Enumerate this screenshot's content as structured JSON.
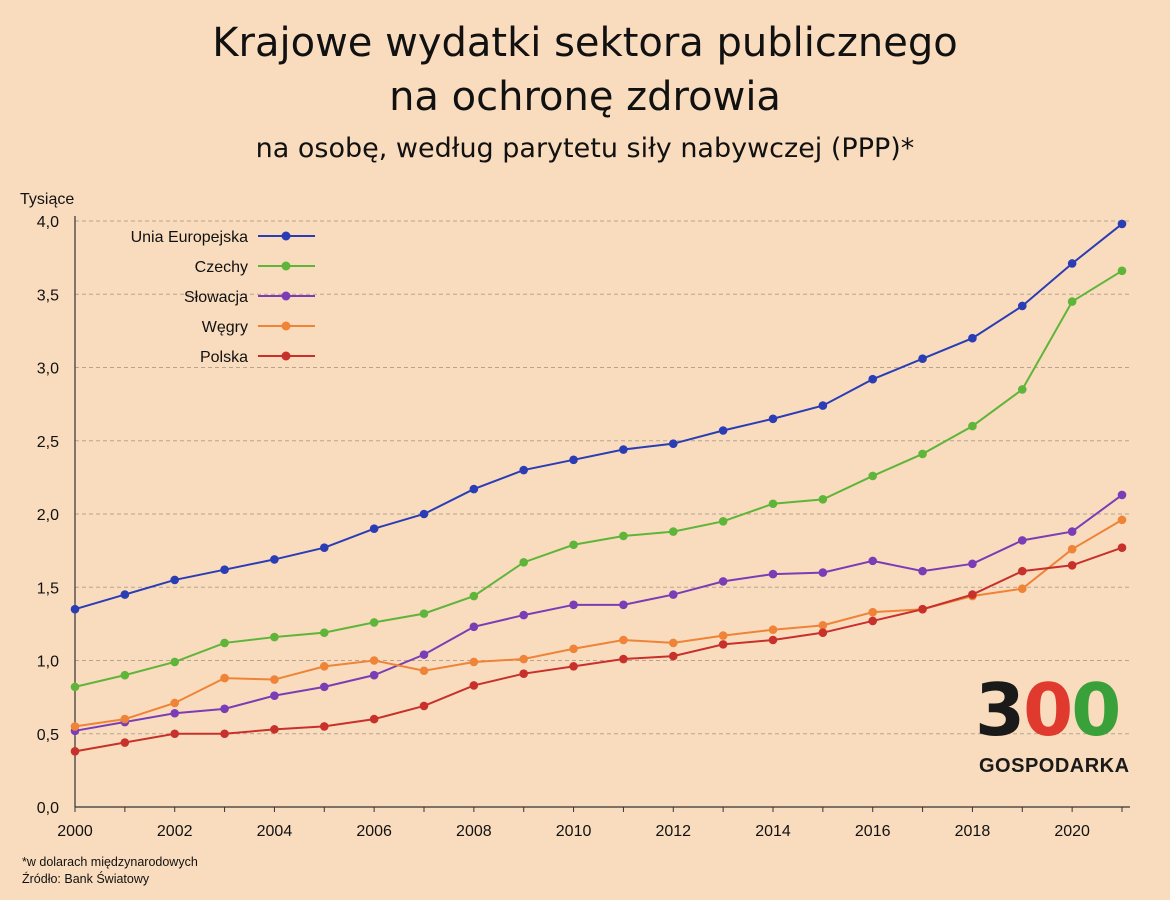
{
  "header": {
    "title_line1": "Krajowe wydatki sektora publicznego",
    "title_line2": "na ochronę zdrowia",
    "subtitle": "na osobę, według parytetu siły nabywczej (PPP)*"
  },
  "footer": {
    "note": "*w dolarach międzynarodowych",
    "source": "Źródło: Bank Światowy"
  },
  "logo": {
    "number": "300",
    "text": "GOSPODARKA",
    "colors": [
      "#1a1a1a",
      "#e03a2f",
      "#3aa13a"
    ]
  },
  "chart_data": {
    "type": "line",
    "ylabel": "Tysiące",
    "ylim": [
      0,
      4.0
    ],
    "yticks": [
      "0,0",
      "0,5",
      "1,0",
      "1,5",
      "2,0",
      "2,5",
      "3,0",
      "3,5",
      "4,0"
    ],
    "xlim": [
      2000,
      2021
    ],
    "xticks": [
      "2000",
      "2002",
      "2004",
      "2006",
      "2008",
      "2010",
      "2012",
      "2014",
      "2016",
      "2018",
      "2020"
    ],
    "grid": "horizontal dashed",
    "legend_position": "top-left",
    "x": [
      2000,
      2001,
      2002,
      2003,
      2004,
      2005,
      2006,
      2007,
      2008,
      2009,
      2010,
      2011,
      2012,
      2013,
      2014,
      2015,
      2016,
      2017,
      2018,
      2019,
      2020,
      2021
    ],
    "series": [
      {
        "name": "Unia Europejska",
        "color": "#2a3db5",
        "values": [
          1.35,
          1.45,
          1.55,
          1.62,
          1.69,
          1.77,
          1.9,
          2.0,
          2.17,
          2.3,
          2.37,
          2.44,
          2.48,
          2.57,
          2.65,
          2.74,
          2.92,
          3.06,
          3.2,
          3.42,
          3.71,
          3.98
        ]
      },
      {
        "name": "Czechy",
        "color": "#5fb53a",
        "values": [
          0.82,
          0.9,
          0.99,
          1.12,
          1.16,
          1.19,
          1.26,
          1.32,
          1.44,
          1.67,
          1.79,
          1.85,
          1.88,
          1.95,
          2.07,
          2.1,
          2.26,
          2.41,
          2.6,
          2.85,
          3.45,
          3.66
        ]
      },
      {
        "name": "Słowacja",
        "color": "#7a3db5",
        "values": [
          0.52,
          0.58,
          0.64,
          0.67,
          0.76,
          0.82,
          0.9,
          1.04,
          1.23,
          1.31,
          1.38,
          1.38,
          1.45,
          1.54,
          1.59,
          1.6,
          1.68,
          1.61,
          1.66,
          1.82,
          1.88,
          2.13
        ]
      },
      {
        "name": "Węgry",
        "color": "#ef8337",
        "values": [
          0.55,
          0.6,
          0.71,
          0.88,
          0.87,
          0.96,
          1.0,
          0.93,
          0.99,
          1.01,
          1.08,
          1.14,
          1.12,
          1.17,
          1.21,
          1.24,
          1.33,
          1.35,
          1.44,
          1.49,
          1.76,
          1.96
        ]
      },
      {
        "name": "Polska",
        "color": "#c8302c",
        "values": [
          0.38,
          0.44,
          0.5,
          0.5,
          0.53,
          0.55,
          0.6,
          0.69,
          0.83,
          0.91,
          0.96,
          1.01,
          1.03,
          1.11,
          1.14,
          1.19,
          1.27,
          1.35,
          1.45,
          1.61,
          1.65,
          1.77
        ]
      }
    ]
  }
}
